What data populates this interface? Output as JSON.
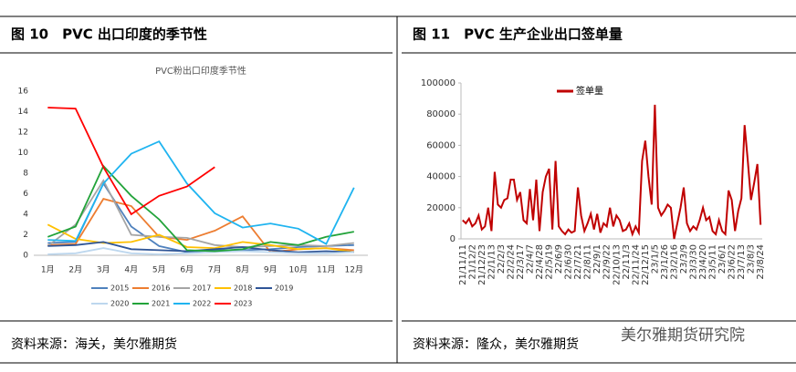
{
  "figures": [
    {
      "caption": "图 10　PVC 出口印度的季节性",
      "source": "资料来源：海关，美尔雅期货"
    },
    {
      "caption": "图 11　PVC 生产企业出口签单量",
      "source": "资料来源：隆众，美尔雅期货"
    }
  ],
  "watermark": "美尔雅期货研究院",
  "chart_data": [
    {
      "type": "line",
      "title": "PVC粉出口印度季节性",
      "categories": [
        "1月",
        "2月",
        "3月",
        "4月",
        "5月",
        "6月",
        "7月",
        "8月",
        "9月",
        "10月",
        "11月",
        "12月"
      ],
      "ylim": [
        0,
        16
      ],
      "yticks": [
        0,
        2,
        4,
        6,
        8,
        10,
        12,
        14,
        16
      ],
      "grid": false,
      "legend": "bottom",
      "series": [
        {
          "name": "2015",
          "color": "#4f81bd",
          "values": [
            1.2,
            1.3,
            7.0,
            2.8,
            0.9,
            0.3,
            0.5,
            0.5,
            0.6,
            0.8,
            0.9,
            1.0
          ]
        },
        {
          "name": "2016",
          "color": "#ed7d31",
          "values": [
            1.0,
            1.1,
            5.5,
            4.8,
            1.8,
            1.5,
            2.4,
            3.8,
            0.3,
            0.6,
            0.7,
            0.5
          ]
        },
        {
          "name": "2017",
          "color": "#a5a5a5",
          "values": [
            0.9,
            3.0,
            7.3,
            2.0,
            1.8,
            1.7,
            1.0,
            0.8,
            0.9,
            1.0,
            0.9,
            1.2
          ]
        },
        {
          "name": "2018",
          "color": "#ffc000",
          "values": [
            3.0,
            1.6,
            1.2,
            1.3,
            2.0,
            0.8,
            0.7,
            1.3,
            1.0,
            0.6,
            0.7,
            0.3
          ]
        },
        {
          "name": "2019",
          "color": "#2f5597",
          "values": [
            0.9,
            1.0,
            1.3,
            0.6,
            0.5,
            0.4,
            0.6,
            0.8,
            0.5,
            0.3,
            0.4,
            0.3
          ]
        },
        {
          "name": "2020",
          "color": "#bdd7ee",
          "values": [
            0.1,
            0.2,
            0.7,
            0.2,
            0.1,
            0.2,
            0.3,
            0.4,
            0.3,
            0.2,
            0.2,
            0.3
          ]
        },
        {
          "name": "2021",
          "color": "#22a33a",
          "values": [
            1.8,
            2.8,
            8.7,
            5.8,
            3.5,
            0.5,
            0.4,
            0.6,
            1.3,
            1.0,
            1.8,
            2.3
          ]
        },
        {
          "name": "2022",
          "color": "#1fb4f0",
          "values": [
            1.5,
            1.4,
            7.0,
            9.9,
            11.1,
            7.0,
            4.1,
            2.7,
            3.1,
            2.6,
            1.1,
            6.6
          ]
        },
        {
          "name": "2023",
          "color": "#ff0000",
          "values": [
            14.4,
            14.3,
            8.6,
            4.0,
            5.8,
            6.7,
            8.6,
            null,
            null,
            null,
            null,
            null
          ]
        }
      ]
    },
    {
      "type": "line",
      "ylim": [
        0,
        100000
      ],
      "yticks": [
        0,
        20000,
        40000,
        60000,
        80000,
        100000
      ],
      "legend": "top-left",
      "categories": [
        "21/11/11",
        null,
        null,
        "21/12/2",
        null,
        null,
        "21/12/23",
        null,
        null,
        "22/1/13",
        null,
        null,
        "22/2/3",
        null,
        null,
        "22/2/24",
        null,
        null,
        "22/3/17",
        null,
        null,
        "22/4/7",
        null,
        null,
        "22/4/28",
        null,
        null,
        "22/5/19",
        null,
        null,
        "22/6/9",
        null,
        null,
        "22/6/30",
        null,
        null,
        "22/7/21",
        null,
        null,
        "22/8/11",
        null,
        null,
        "22/9/1",
        null,
        null,
        "22/9/22",
        null,
        null,
        "22/10/13",
        null,
        null,
        "22/11/3",
        null,
        null,
        "22/11/24",
        null,
        null,
        "22/12/15",
        null,
        null,
        "23/1/5",
        null,
        null,
        "23/1/26",
        null,
        null,
        "23/2/16",
        null,
        null,
        "23/3/9",
        null,
        null,
        "23/3/30",
        null,
        null,
        "23/4/20",
        null,
        null,
        "23/5/11",
        null,
        null,
        "23/6/1",
        null,
        null,
        "23/6/22",
        null,
        null,
        "23/7/13",
        null,
        null,
        "23/8/3",
        null,
        null,
        "23/8/24"
      ],
      "series": [
        {
          "name": "签单量",
          "color": "#c00000",
          "values": [
            12000,
            10000,
            13000,
            8000,
            10000,
            15000,
            6000,
            8000,
            20000,
            5000,
            43000,
            22000,
            20000,
            25000,
            26000,
            38000,
            38000,
            25000,
            30000,
            12000,
            10000,
            32000,
            12000,
            38000,
            5000,
            30000,
            40000,
            45000,
            6000,
            50000,
            8000,
            5000,
            3000,
            6000,
            4000,
            5000,
            33000,
            15000,
            5000,
            10000,
            16000,
            6000,
            16000,
            4000,
            10000,
            8000,
            20000,
            8000,
            15000,
            12000,
            5000,
            6000,
            10000,
            3000,
            8000,
            4000,
            50000,
            63000,
            40000,
            22000,
            86000,
            20000,
            15000,
            18000,
            22000,
            20000,
            0,
            10000,
            20000,
            33000,
            10000,
            5000,
            8000,
            6000,
            12000,
            20000,
            12000,
            14000,
            5000,
            3000,
            12000,
            5000,
            3000,
            31000,
            25000,
            5000,
            18000,
            26000,
            73000,
            50000,
            25000,
            36000,
            48000,
            9000
          ]
        }
      ]
    }
  ]
}
